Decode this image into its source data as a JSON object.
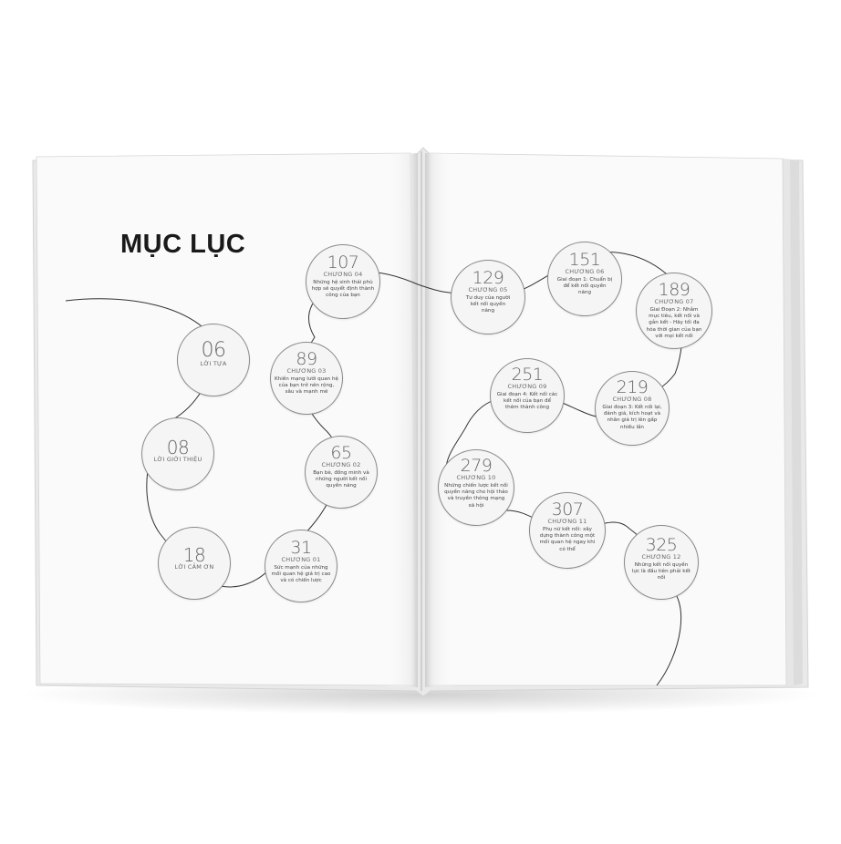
{
  "page": {
    "title": "MỤC LỤC"
  },
  "toc": [
    {
      "id": "loi-tua",
      "page": "06",
      "label": "LỜI TỰA",
      "desc": ""
    },
    {
      "id": "loi-gioi-thieu",
      "page": "08",
      "label": "LỜI GIỚI THIỆU",
      "desc": ""
    },
    {
      "id": "loi-cam-on",
      "page": "18",
      "label": "LỜI CẢM ƠN",
      "desc": ""
    },
    {
      "id": "chuong-01",
      "page": "31",
      "label": "CHƯƠNG 01",
      "desc": "Sức mạnh của những mối quan hệ giá trị cao và có chiến lược"
    },
    {
      "id": "chuong-02",
      "page": "65",
      "label": "CHƯƠNG 02",
      "desc": "Bạn bè, đồng minh và những người kết nối quyền năng"
    },
    {
      "id": "chuong-03",
      "page": "89",
      "label": "CHƯƠNG 03",
      "desc": "Khiến mạng lưới quan hệ của bạn trở nên rộng, sâu và mạnh mẽ"
    },
    {
      "id": "chuong-04",
      "page": "107",
      "label": "CHƯƠNG 04",
      "desc": "Những hệ sinh thái phù hợp sẽ quyết định thành công của bạn"
    },
    {
      "id": "chuong-05",
      "page": "129",
      "label": "CHƯƠNG 05",
      "desc": "Tư duy của người kết nối quyền năng"
    },
    {
      "id": "chuong-06",
      "page": "151",
      "label": "CHƯƠNG 06",
      "desc": "Giai đoạn 1: Chuẩn bị để kết nối quyền năng"
    },
    {
      "id": "chuong-07",
      "page": "189",
      "label": "CHƯƠNG 07",
      "desc": "Giai Đoạn 2: Nhắm mục tiêu, kết nối và gắn kết - Hãy tối đa hóa thời gian của bạn với mọi kết nối"
    },
    {
      "id": "chuong-08",
      "page": "219",
      "label": "CHƯƠNG 08",
      "desc": "Giai đoạn 3: Kết nối lại, đánh giá, kích hoạt và nhân giá trị lên gấp nhiều lần"
    },
    {
      "id": "chuong-09",
      "page": "251",
      "label": "CHƯƠNG 09",
      "desc": "Giai đoạn 4: Kết nối các kết nối của bạn để thêm thành công"
    },
    {
      "id": "chuong-10",
      "page": "279",
      "label": "CHƯƠNG 10",
      "desc": "Những chiến lược kết nối quyền năng cho hội thảo và truyền thông mạng xã hội"
    },
    {
      "id": "chuong-11",
      "page": "307",
      "label": "CHƯƠNG 11",
      "desc": "Phụ nữ kết nối: xây dựng thành công một mối quan hệ ngay khi có thể"
    },
    {
      "id": "chuong-12",
      "page": "325",
      "label": "CHƯƠNG 12",
      "desc": "Những kết nối quyền lực là đầu tiên phải kết nối"
    }
  ]
}
